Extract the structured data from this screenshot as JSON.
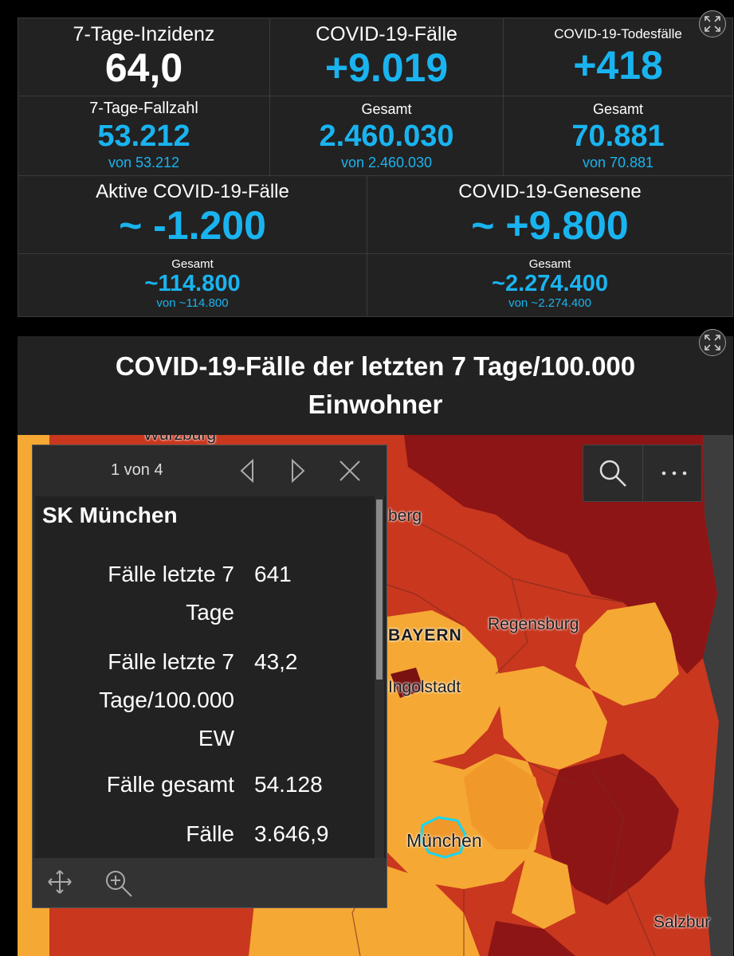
{
  "stats": {
    "incidence": {
      "label": "7-Tage-Inzidenz",
      "value": "64,0"
    },
    "cases": {
      "label": "COVID-19-Fälle",
      "value": "+9.019"
    },
    "deaths": {
      "label": "COVID-19-Todesfälle",
      "value": "+418"
    },
    "cases7": {
      "label": "7-Tage-Fallzahl",
      "value": "53.212",
      "sub": "von 53.212"
    },
    "cases_total": {
      "label": "Gesamt",
      "value": "2.460.030",
      "sub": "von 2.460.030"
    },
    "deaths_total": {
      "label": "Gesamt",
      "value": "70.881",
      "sub": "von 70.881"
    },
    "active": {
      "label": "Aktive COVID-19-Fälle",
      "value": "~ -1.200"
    },
    "recovered": {
      "label": "COVID-19-Genesene",
      "value": "~ +9.800"
    },
    "active_total": {
      "label": "Gesamt",
      "value": "~114.800",
      "sub": "von ~114.800"
    },
    "recovered_total": {
      "label": "Gesamt",
      "value": "~2.274.400",
      "sub": "von ~2.274.400"
    }
  },
  "map_card": {
    "title": "COVID-19-Fälle der letzten 7 Tage/100.000 Einwohner",
    "labels": {
      "wurzburg": "Würzburg",
      "nurnberg_fragment": "berg",
      "bayern": "BAYERN",
      "regensburg": "Regensburg",
      "ingolstadt": "Ingolstadt",
      "munchen": "München",
      "salzburg": "Salzbur"
    },
    "colors": {
      "low": "#f5a833",
      "mid": "#c8371e",
      "high": "#8e1515",
      "highlight": "#17d7f0"
    }
  },
  "popup": {
    "pager": "1 von 4",
    "title": "SK München",
    "fields": [
      {
        "label_lines": [
          "Fälle letzte 7",
          "Tage"
        ],
        "value": "641"
      },
      {
        "label_lines": [
          "Fälle letzte 7",
          "Tage/100.000",
          "EW"
        ],
        "value": "43,2"
      },
      {
        "label_lines": [
          "Fälle gesamt"
        ],
        "value": "54.128"
      },
      {
        "label_lines": [
          "Fälle"
        ],
        "value": "3.646,9"
      }
    ]
  },
  "icons": {
    "expand": "expand-icon",
    "prev": "chevron-left-icon",
    "next": "chevron-right-icon",
    "close": "close-icon",
    "search": "search-icon",
    "more": "more-icon",
    "pan": "pan-icon",
    "zoom_to": "zoom-to-icon"
  }
}
